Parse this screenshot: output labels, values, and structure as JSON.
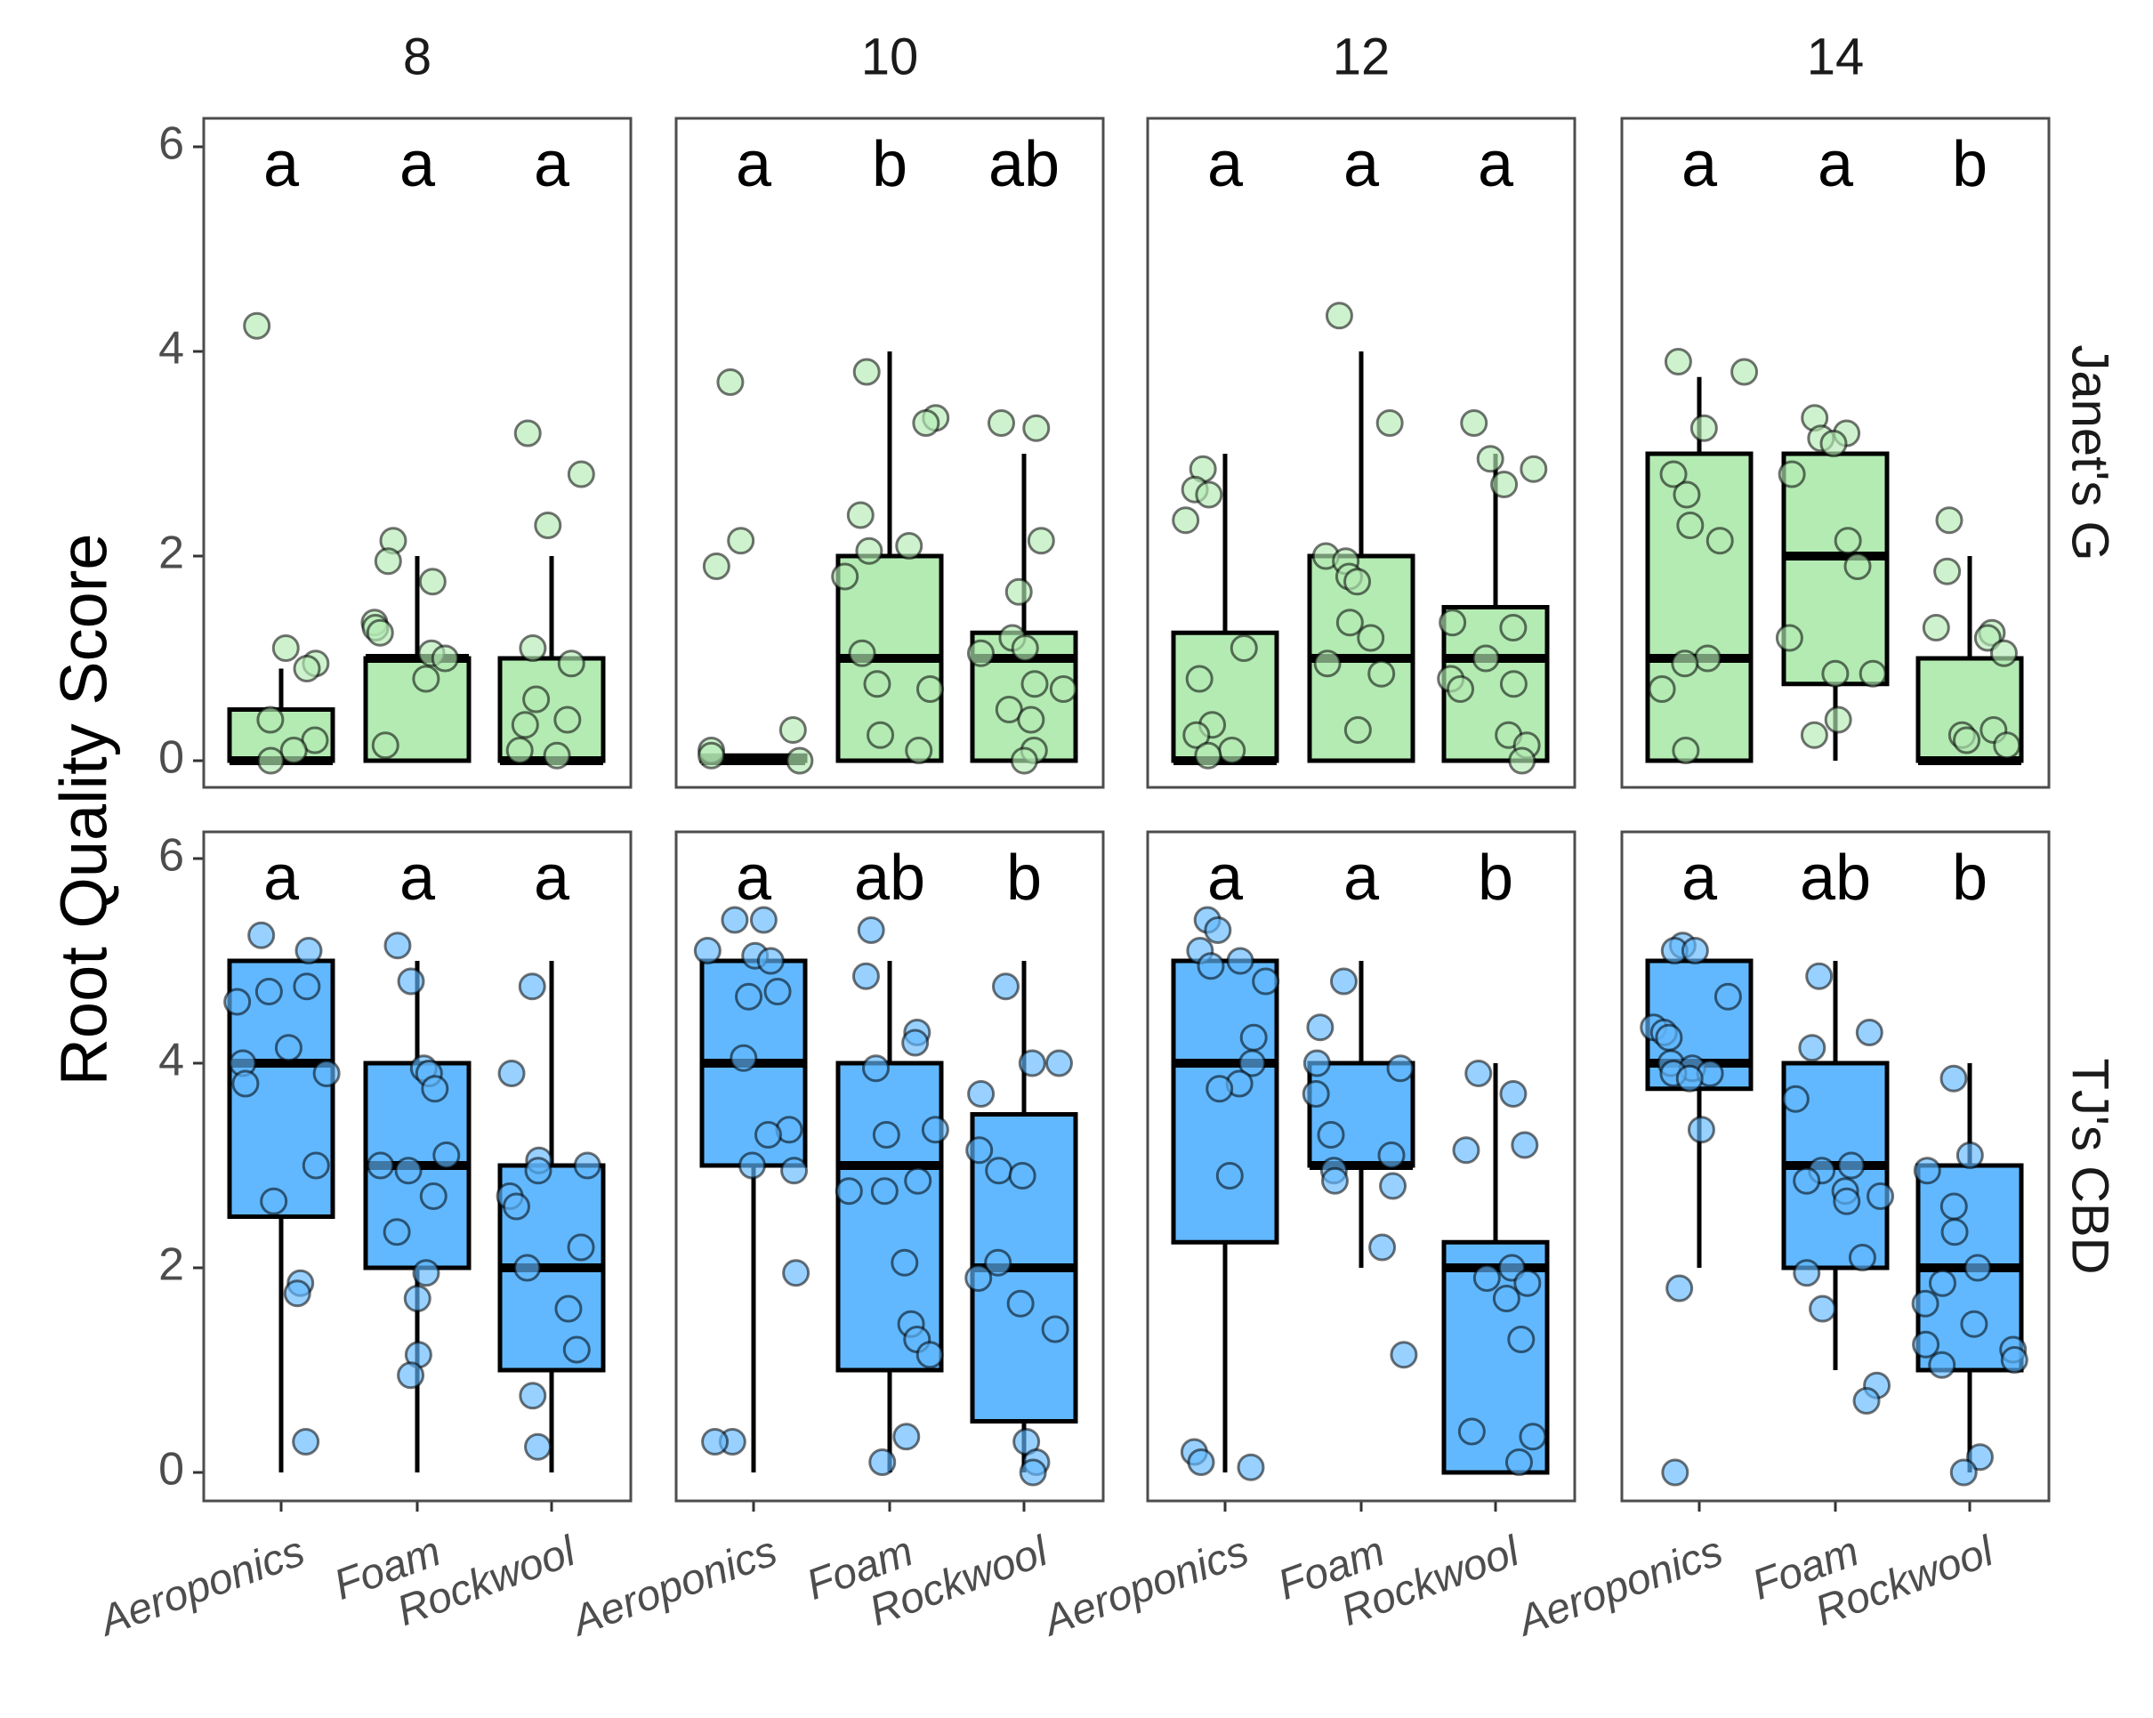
{
  "chart_data": {
    "type": "boxplot",
    "ylabel": "Root Quality Score",
    "ylim": [
      -0.25,
      6.3
    ],
    "yticks": [
      0,
      2,
      4,
      6
    ],
    "categories": [
      "Aeroponics",
      "Foam",
      "Rockwool"
    ],
    "columns": [
      "8",
      "10",
      "12",
      "14"
    ],
    "rows": [
      {
        "name": "Janet's G",
        "color": "#b3ebb3"
      },
      {
        "name": "TJ's CBD",
        "color": "#61b8ff"
      }
    ],
    "panels": [
      {
        "row": 0,
        "col": 0,
        "letters": [
          "a",
          "a",
          "a"
        ],
        "boxes": [
          {
            "min": 0,
            "q1": 0,
            "median": 0,
            "q3": 0.5,
            "max": 0.9,
            "points": [
              4.25,
              1.1,
              0.95,
              0.9,
              0.4,
              0.2,
              0.1,
              0.0
            ]
          },
          {
            "min": 0,
            "q1": 0,
            "median": 1,
            "q3": 1.0,
            "max": 2.0,
            "points": [
              2.15,
              1.95,
              1.75,
              1.35,
              1.3,
              1.25,
              1.05,
              1.0,
              0.8,
              0.15
            ]
          },
          {
            "min": 0,
            "q1": 0,
            "median": 0,
            "q3": 1.0,
            "max": 2.0,
            "points": [
              3.2,
              2.8,
              2.3,
              1.1,
              0.95,
              0.6,
              0.4,
              0.35,
              0.1,
              0.05
            ]
          }
        ]
      },
      {
        "row": 0,
        "col": 1,
        "letters": [
          "a",
          "b",
          "ab"
        ],
        "boxes": [
          {
            "min": 0,
            "q1": 0,
            "median": 0,
            "q3": 0.05,
            "max": 0.05,
            "points": [
              3.7,
              2.15,
              1.9,
              0.3,
              0.1,
              0.05,
              0.0
            ]
          },
          {
            "min": 0,
            "q1": 0,
            "median": 1,
            "q3": 2.0,
            "max": 4.0,
            "points": [
              3.8,
              3.35,
              3.3,
              2.4,
              2.1,
              2.05,
              1.8,
              1.05,
              0.75,
              0.7,
              0.25,
              0.1
            ]
          },
          {
            "min": 0,
            "q1": 0,
            "median": 1,
            "q3": 1.25,
            "max": 3.0,
            "points": [
              3.3,
              3.25,
              2.15,
              1.65,
              1.2,
              1.1,
              1.05,
              0.75,
              0.7,
              0.5,
              0.4,
              0.1,
              0.0
            ]
          }
        ]
      },
      {
        "row": 0,
        "col": 2,
        "letters": [
          "a",
          "a",
          "a"
        ],
        "boxes": [
          {
            "min": 0,
            "q1": 0,
            "median": 0,
            "q3": 1.25,
            "max": 3.0,
            "points": [
              2.85,
              2.65,
              2.6,
              2.35,
              1.1,
              0.8,
              0.35,
              0.25,
              0.1,
              0.05
            ]
          },
          {
            "min": 0,
            "q1": 0,
            "median": 1,
            "q3": 2.0,
            "max": 4.0,
            "points": [
              4.35,
              3.3,
              2.0,
              1.95,
              1.8,
              1.75,
              1.35,
              1.2,
              0.95,
              0.85,
              0.3
            ]
          },
          {
            "min": 0,
            "q1": 0,
            "median": 1,
            "q3": 1.5,
            "max": 3.0,
            "points": [
              3.3,
              2.95,
              2.85,
              2.7,
              1.35,
              1.3,
              1.0,
              0.8,
              0.75,
              0.7,
              0.25,
              0.15,
              0.0
            ]
          }
        ]
      },
      {
        "row": 0,
        "col": 3,
        "letters": [
          "a",
          "a",
          "b"
        ],
        "boxes": [
          {
            "min": 0,
            "q1": 0,
            "median": 1,
            "q3": 3.0,
            "max": 3.75,
            "points": [
              3.9,
              3.8,
              3.25,
              2.8,
              2.6,
              2.3,
              2.15,
              1.0,
              0.95,
              0.7,
              0.1
            ]
          },
          {
            "min": 0,
            "q1": 0.75,
            "median": 2,
            "q3": 3.0,
            "max": 3.0,
            "points": [
              3.35,
              3.2,
              3.15,
              3.1,
              2.8,
              2.15,
              1.9,
              1.2,
              0.85,
              0.85,
              0.4,
              0.25
            ]
          },
          {
            "min": 0,
            "q1": 0,
            "median": 0,
            "q3": 1.0,
            "max": 2.0,
            "points": [
              2.35,
              1.85,
              1.3,
              1.25,
              1.2,
              1.05,
              0.3,
              0.25,
              0.2,
              0.15
            ]
          }
        ]
      },
      {
        "row": 1,
        "col": 0,
        "letters": [
          "a",
          "a",
          "a"
        ],
        "boxes": [
          {
            "min": 0,
            "q1": 2.5,
            "median": 4,
            "q3": 5.0,
            "max": 5.0,
            "points": [
              5.25,
              5.1,
              4.75,
              4.7,
              4.6,
              4.15,
              4.0,
              3.9,
              3.8,
              3.0,
              2.65,
              1.85,
              1.75,
              0.3
            ]
          },
          {
            "min": 0,
            "q1": 2,
            "median": 3,
            "q3": 4.0,
            "max": 5.0,
            "points": [
              5.15,
              4.8,
              3.95,
              3.9,
              3.75,
              3.1,
              3.0,
              2.95,
              2.7,
              2.35,
              1.95,
              1.7,
              1.15,
              0.95
            ]
          },
          {
            "min": 0,
            "q1": 1,
            "median": 2,
            "q3": 3.0,
            "max": 5.0,
            "points": [
              4.75,
              3.9,
              3.05,
              3.0,
              2.95,
              2.7,
              2.6,
              2.2,
              2.0,
              1.6,
              1.2,
              0.75,
              0.25
            ]
          }
        ]
      },
      {
        "row": 1,
        "col": 1,
        "letters": [
          "a",
          "ab",
          "b"
        ],
        "boxes": [
          {
            "min": 0,
            "q1": 3,
            "median": 4,
            "q3": 5.0,
            "max": 5.0,
            "points": [
              5.4,
              5.4,
              5.1,
              5.05,
              5.0,
              4.7,
              4.65,
              4.05,
              3.35,
              3.3,
              3.0,
              2.95,
              1.95,
              0.3,
              0.3
            ]
          },
          {
            "min": 0,
            "q1": 1,
            "median": 3,
            "q3": 4.0,
            "max": 5.0,
            "points": [
              5.3,
              4.85,
              4.3,
              4.2,
              3.95,
              3.35,
              3.3,
              2.85,
              2.75,
              2.75,
              2.05,
              1.45,
              1.3,
              1.15,
              0.35,
              0.1
            ]
          },
          {
            "min": 0,
            "q1": 0.5,
            "median": 2,
            "q3": 3.5,
            "max": 5.0,
            "points": [
              4.75,
              4.0,
              4.0,
              3.7,
              3.15,
              2.95,
              2.9,
              2.05,
              1.9,
              1.65,
              1.4,
              0.3,
              0.1,
              0.0
            ]
          }
        ]
      },
      {
        "row": 1,
        "col": 2,
        "letters": [
          "a",
          "a",
          "b"
        ],
        "boxes": [
          {
            "min": 0,
            "q1": 2.25,
            "median": 4,
            "q3": 5.0,
            "max": 5.0,
            "points": [
              5.4,
              5.3,
              5.1,
              5.0,
              4.95,
              4.8,
              4.25,
              4.0,
              3.8,
              3.75,
              2.9,
              0.2,
              0.1,
              0.05
            ]
          },
          {
            "min": 2,
            "q1": 3,
            "median": 3,
            "q3": 4.0,
            "max": 5.0,
            "points": [
              4.8,
              4.35,
              4.0,
              3.95,
              3.7,
              3.3,
              3.1,
              2.95,
              2.85,
              2.8,
              2.2,
              1.15
            ]
          },
          {
            "min": 0,
            "q1": 0,
            "median": 2,
            "q3": 2.25,
            "max": 4.0,
            "points": [
              3.9,
              3.7,
              3.2,
              3.15,
              2.0,
              1.9,
              1.85,
              1.7,
              1.3,
              0.4,
              0.35,
              0.1
            ]
          }
        ]
      },
      {
        "row": 1,
        "col": 3,
        "letters": [
          "a",
          "ab",
          "b"
        ],
        "boxes": [
          {
            "min": 2,
            "q1": 3.75,
            "median": 4,
            "q3": 5.0,
            "max": 5.0,
            "points": [
              5.15,
              5.1,
              5.1,
              4.65,
              4.35,
              4.3,
              4.25,
              4.0,
              3.95,
              3.9,
              3.9,
              3.85,
              3.35,
              1.8,
              0.0
            ]
          },
          {
            "min": 1,
            "q1": 2,
            "median": 3,
            "q3": 4.0,
            "max": 5.0,
            "points": [
              4.85,
              4.3,
              4.15,
              3.65,
              3.0,
              2.95,
              2.85,
              2.75,
              2.7,
              2.65,
              2.1,
              1.95,
              1.6,
              0.85,
              0.7
            ]
          },
          {
            "min": 0,
            "q1": 1,
            "median": 2,
            "q3": 3.0,
            "max": 4.0,
            "points": [
              3.85,
              3.1,
              2.95,
              2.6,
              2.35,
              2.0,
              1.85,
              1.65,
              1.45,
              1.25,
              1.2,
              1.1,
              1.05,
              0.15,
              0.0
            ]
          }
        ]
      }
    ]
  }
}
